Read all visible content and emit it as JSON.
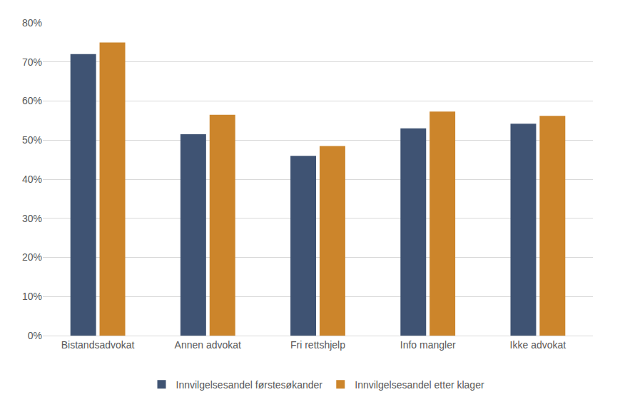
{
  "chart_data": {
    "type": "bar",
    "categories": [
      "Bistandsadvokat",
      "Annen advokat",
      "Fri rettshjelp",
      "Info mangler",
      "Ikke advokat"
    ],
    "series": [
      {
        "name": "Innvilgelsesandel førstesøkander",
        "color": "#3f5373",
        "values": [
          72,
          51.5,
          46,
          53,
          54.2
        ]
      },
      {
        "name": "Innvilgelsesandel etter klager",
        "color": "#cc852b",
        "values": [
          75,
          56.5,
          48.5,
          57.3,
          56.2
        ]
      }
    ],
    "ylim": [
      0,
      80
    ],
    "yticks": [
      {
        "value": 0,
        "label": "0%"
      },
      {
        "value": 10,
        "label": "10%"
      },
      {
        "value": 20,
        "label": "20%"
      },
      {
        "value": 30,
        "label": "30%"
      },
      {
        "value": 40,
        "label": "40%"
      },
      {
        "value": 50,
        "label": "50%"
      },
      {
        "value": 60,
        "label": "60%"
      },
      {
        "value": 70,
        "label": "70%"
      },
      {
        "value": 80,
        "label": "80%"
      }
    ],
    "grid": true,
    "legend": "bottom"
  }
}
